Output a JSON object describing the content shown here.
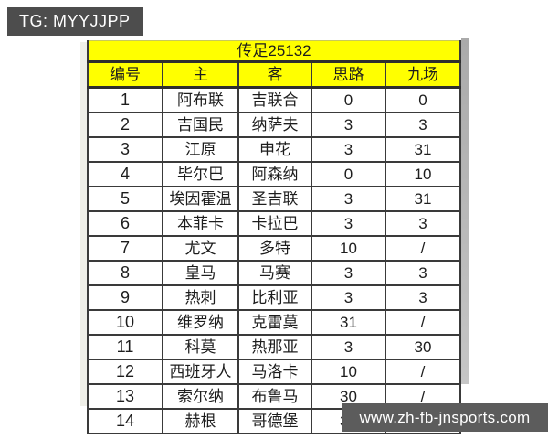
{
  "badge": {
    "label": "TG: MYYJJPP"
  },
  "footer": {
    "label": "www.zh-fb-jnsports.com"
  },
  "table": {
    "title": "传足25132",
    "columns": [
      "编号",
      "主",
      "客",
      "思路",
      "九场"
    ],
    "rows": [
      [
        "1",
        "阿布联",
        "吉联合",
        "0",
        "0"
      ],
      [
        "2",
        "吉国民",
        "纳萨夫",
        "3",
        "3"
      ],
      [
        "3",
        "江原",
        "申花",
        "3",
        "31"
      ],
      [
        "4",
        "毕尔巴",
        "阿森纳",
        "0",
        "10"
      ],
      [
        "5",
        "埃因霍温",
        "圣吉联",
        "3",
        "31"
      ],
      [
        "6",
        "本菲卡",
        "卡拉巴",
        "3",
        "3"
      ],
      [
        "7",
        "尤文",
        "多特",
        "10",
        "/"
      ],
      [
        "8",
        "皇马",
        "马赛",
        "3",
        "3"
      ],
      [
        "9",
        "热刺",
        "比利亚",
        "3",
        "3"
      ],
      [
        "10",
        "维罗纳",
        "克雷莫",
        "31",
        "/"
      ],
      [
        "11",
        "科莫",
        "热那亚",
        "3",
        "30"
      ],
      [
        "12",
        "西班牙人",
        "马洛卡",
        "10",
        "/"
      ],
      [
        "13",
        "索尔纳",
        "布鲁马",
        "30",
        "/"
      ],
      [
        "14",
        "赫根",
        "哥德堡",
        "30",
        "/"
      ]
    ]
  },
  "colors": {
    "header_yellow": "#ffff00",
    "badge_gray": "#4d4d4d",
    "footer_gray": "#5c5c5c",
    "table_border": "#3a3a3a",
    "scrollbar_gray": "#b5b5b5",
    "page_background": "#ffffff"
  }
}
